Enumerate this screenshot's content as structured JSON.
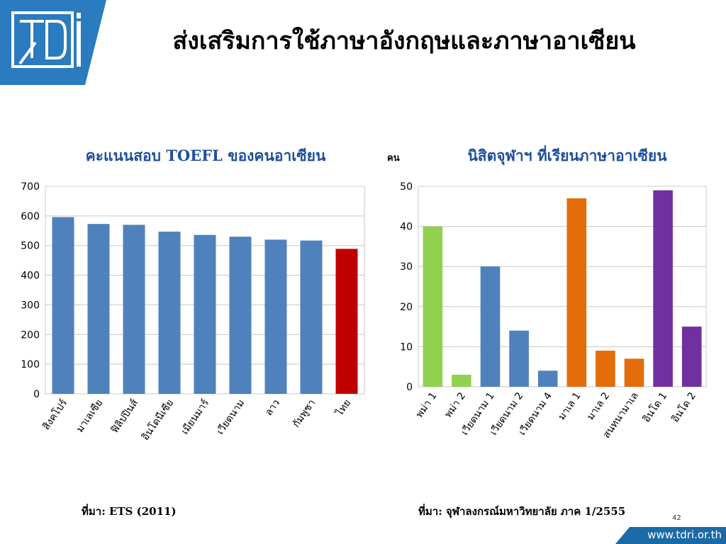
{
  "slide": {
    "title": "ส่งเสริมการใช้ภาษาอังกฤษและภาษาอาเซียน",
    "page_number": "42",
    "footer_url": "www.tdri.or.th",
    "left_source": "ที่มา: ETS  (2011)",
    "right_source": "ที่มา: จุฬาลงกรณ์มหาวิทยาลัย ภาค 1/2555",
    "logo_icon": "tdri-logo-icon",
    "colors": {
      "banner": "#2a7bbf",
      "footer": "#1b6aa8"
    }
  },
  "chart_data": [
    {
      "type": "bar",
      "title": "คะแนนสอบ TOEFL ของคนอาเซียน",
      "categories": [
        "สิงคโปร์",
        "มาเลเซีย",
        "ฟิลิปปินส์",
        "อินโดนีเซีย",
        "เมียนมาร์",
        "เวียดนาม",
        "ลาว",
        "กัมพูชา",
        "ไทย"
      ],
      "values": [
        596,
        573,
        570,
        547,
        536,
        530,
        520,
        517,
        489
      ],
      "colors": [
        "#4f81bd",
        "#4f81bd",
        "#4f81bd",
        "#4f81bd",
        "#4f81bd",
        "#4f81bd",
        "#4f81bd",
        "#4f81bd",
        "#c00000"
      ],
      "ylim": [
        0,
        700
      ],
      "yticks": [
        0,
        100,
        200,
        300,
        400,
        500,
        600,
        700
      ],
      "xlabel": "",
      "ylabel": "",
      "grid": true,
      "legend": "none"
    },
    {
      "type": "bar",
      "title": "นิสิตจุฬาฯ ที่เรียนภาษาอาเซียน",
      "unit_label": "คน",
      "categories": [
        "พม่า 1",
        "พม่า 2",
        "เวียดนาม 1",
        "เวียดนาม 2",
        "เวียดนาม 4",
        "มาเล 1",
        "มาเล 2",
        "สนทนามาเล",
        "อินโด 1",
        "อินโด 2"
      ],
      "values": [
        40,
        3,
        30,
        14,
        4,
        47,
        9,
        7,
        49,
        15
      ],
      "colors": [
        "#92d050",
        "#92d050",
        "#4f81bd",
        "#4f81bd",
        "#4f81bd",
        "#e46c0a",
        "#e46c0a",
        "#e46c0a",
        "#7030a0",
        "#7030a0"
      ],
      "ylim": [
        0,
        50
      ],
      "yticks": [
        0,
        10,
        20,
        30,
        40,
        50
      ],
      "xlabel": "",
      "ylabel": "คน",
      "grid": true,
      "legend": "none"
    }
  ]
}
